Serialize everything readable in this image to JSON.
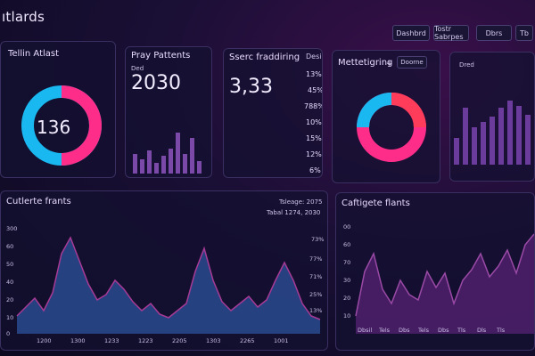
{
  "header": {
    "title": "ıtlards",
    "buttons": [
      "Dashbrd",
      "Tostr Sabrpes",
      "Dbrs",
      "Tb"
    ]
  },
  "cards": {
    "c1": {
      "title": "Tellin Atlast",
      "value": "136"
    },
    "c2": {
      "title": "Pray Pattents",
      "sub": "Ded",
      "value": "2030"
    },
    "c3": {
      "title": "Sserc fraddiring",
      "value": "3,33",
      "side_label": "Desi",
      "percents": [
        "13%",
        "45%",
        "788%",
        "10%",
        "15%",
        "12%",
        "6%"
      ]
    },
    "c4": {
      "title": "Mettetigring",
      "plus": "+",
      "tag": "Doorne"
    },
    "c5": {
      "tab": "Dred"
    }
  },
  "bottom_left": {
    "title": "Cutlerte frants",
    "legend1": "Tsleage: 2075",
    "legend2": "Tabal 1274, 2030",
    "y_left": [
      "300",
      "60",
      "50",
      "40",
      "20",
      "10",
      "0"
    ],
    "y_right": [
      "73%",
      "77%",
      "71%",
      "25%",
      "13%"
    ],
    "x_ticks": [
      "1200",
      "1300",
      "1233",
      "1223",
      "2205",
      "1303",
      "2265",
      "1001"
    ]
  },
  "bottom_right": {
    "title": "Caftigete flants",
    "y": [
      "00",
      "60",
      "70",
      "30",
      "20",
      "10"
    ],
    "x_ticks": [
      "Dbsil",
      "Tels",
      "Dbs",
      "Tels",
      "Dbs",
      "Tls",
      "Dls",
      "Tls"
    ]
  },
  "colors": {
    "pink": "#ff2d8a",
    "cyan": "#19b8f0",
    "purple": "#6b3c9b"
  }
}
